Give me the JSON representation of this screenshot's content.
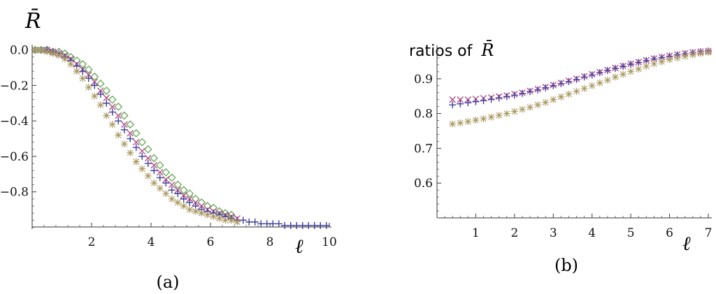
{
  "chart_data": [
    {
      "type": "scatter",
      "title": "",
      "ylabel": "R̄",
      "xlabel": "ℓ",
      "caption": "(a)",
      "xlim": [
        0,
        10
      ],
      "ylim": [
        -1,
        0.02
      ],
      "x_ticks": [
        2,
        4,
        6,
        8,
        10
      ],
      "x_tick_labels": [
        "2",
        "4",
        "6",
        "8",
        "10"
      ],
      "y_ticks": [
        0,
        -0.2,
        -0.4,
        -0.6,
        -0.8
      ],
      "y_tick_labels": [
        "0.0",
        "−0.2",
        "−0.4",
        "−0.6",
        "−0.8"
      ],
      "grid": false,
      "series": [
        {
          "marker": "diamond",
          "color": "#5aa046",
          "points": [
            [
              0.1,
              0
            ],
            [
              0.3,
              0
            ],
            [
              0.5,
              0
            ],
            [
              0.7,
              -0.01
            ],
            [
              0.9,
              -0.01
            ],
            [
              1.1,
              -0.02
            ],
            [
              1.3,
              -0.04
            ],
            [
              1.5,
              -0.06
            ],
            [
              1.7,
              -0.08
            ],
            [
              1.9,
              -0.11
            ],
            [
              2.1,
              -0.15
            ],
            [
              2.3,
              -0.19
            ],
            [
              2.5,
              -0.23
            ],
            [
              2.7,
              -0.28
            ],
            [
              2.9,
              -0.32
            ],
            [
              3.1,
              -0.37
            ],
            [
              3.3,
              -0.42
            ],
            [
              3.5,
              -0.47
            ],
            [
              3.7,
              -0.52
            ],
            [
              3.9,
              -0.56
            ],
            [
              4.1,
              -0.61
            ],
            [
              4.3,
              -0.65
            ],
            [
              4.5,
              -0.69
            ],
            [
              4.7,
              -0.72
            ],
            [
              4.9,
              -0.76
            ],
            [
              5.1,
              -0.79
            ],
            [
              5.3,
              -0.81
            ],
            [
              5.5,
              -0.84
            ],
            [
              5.7,
              -0.86
            ],
            [
              5.9,
              -0.88
            ],
            [
              6.1,
              -0.89
            ],
            [
              6.3,
              -0.91
            ],
            [
              6.5,
              -0.92
            ],
            [
              6.7,
              -0.93
            ]
          ]
        },
        {
          "marker": "x",
          "color": "#b24a86",
          "points": [
            [
              0.1,
              0
            ],
            [
              0.3,
              0
            ],
            [
              0.5,
              0
            ],
            [
              0.7,
              -0.01
            ],
            [
              0.9,
              -0.02
            ],
            [
              1.1,
              -0.03
            ],
            [
              1.3,
              -0.05
            ],
            [
              1.5,
              -0.08
            ],
            [
              1.7,
              -0.11
            ],
            [
              1.9,
              -0.14
            ],
            [
              2.1,
              -0.18
            ],
            [
              2.3,
              -0.23
            ],
            [
              2.5,
              -0.27
            ],
            [
              2.7,
              -0.32
            ],
            [
              2.9,
              -0.37
            ],
            [
              3.1,
              -0.42
            ],
            [
              3.3,
              -0.47
            ],
            [
              3.5,
              -0.52
            ],
            [
              3.7,
              -0.57
            ],
            [
              3.9,
              -0.61
            ],
            [
              4.1,
              -0.65
            ],
            [
              4.3,
              -0.69
            ],
            [
              4.5,
              -0.73
            ],
            [
              4.7,
              -0.76
            ],
            [
              4.9,
              -0.79
            ],
            [
              5.1,
              -0.82
            ],
            [
              5.3,
              -0.84
            ],
            [
              5.5,
              -0.86
            ],
            [
              5.7,
              -0.88
            ],
            [
              5.9,
              -0.9
            ],
            [
              6.1,
              -0.91
            ],
            [
              6.3,
              -0.92
            ],
            [
              6.5,
              -0.93
            ],
            [
              6.7,
              -0.94
            ],
            [
              6.9,
              -0.95
            ]
          ]
        },
        {
          "marker": "plus",
          "color": "#3d3d9c",
          "points": [
            [
              0.1,
              0
            ],
            [
              0.3,
              0
            ],
            [
              0.5,
              0
            ],
            [
              0.7,
              -0.01
            ],
            [
              0.9,
              -0.02
            ],
            [
              1.1,
              -0.04
            ],
            [
              1.3,
              -0.06
            ],
            [
              1.5,
              -0.09
            ],
            [
              1.7,
              -0.12
            ],
            [
              1.9,
              -0.16
            ],
            [
              2.1,
              -0.2
            ],
            [
              2.3,
              -0.25
            ],
            [
              2.5,
              -0.3
            ],
            [
              2.7,
              -0.35
            ],
            [
              2.9,
              -0.4
            ],
            [
              3.1,
              -0.45
            ],
            [
              3.3,
              -0.5
            ],
            [
              3.5,
              -0.55
            ],
            [
              3.7,
              -0.6
            ],
            [
              3.9,
              -0.64
            ],
            [
              4.1,
              -0.68
            ],
            [
              4.3,
              -0.72
            ],
            [
              4.5,
              -0.75
            ],
            [
              4.7,
              -0.79
            ],
            [
              4.9,
              -0.81
            ],
            [
              5.1,
              -0.84
            ],
            [
              5.3,
              -0.86
            ],
            [
              5.5,
              -0.88
            ],
            [
              5.7,
              -0.9
            ],
            [
              5.9,
              -0.91
            ],
            [
              6.1,
              -0.92
            ],
            [
              6.3,
              -0.93
            ],
            [
              6.5,
              -0.94
            ],
            [
              6.7,
              -0.95
            ],
            [
              6.9,
              -0.96
            ],
            [
              7.1,
              -0.96
            ],
            [
              7.3,
              -0.97
            ],
            [
              7.5,
              -0.97
            ],
            [
              7.7,
              -0.98
            ],
            [
              7.9,
              -0.98
            ],
            [
              8.1,
              -0.98
            ],
            [
              8.3,
              -0.98
            ],
            [
              8.5,
              -0.99
            ],
            [
              8.7,
              -0.99
            ],
            [
              8.9,
              -0.99
            ],
            [
              9.1,
              -0.99
            ],
            [
              9.3,
              -0.99
            ],
            [
              9.5,
              -0.99
            ],
            [
              9.7,
              -0.99
            ],
            [
              9.9,
              -0.99
            ]
          ]
        },
        {
          "marker": "asterisk",
          "color": "#a8975c",
          "points": [
            [
              0.1,
              0
            ],
            [
              0.3,
              0
            ],
            [
              0.5,
              -0.01
            ],
            [
              0.7,
              -0.02
            ],
            [
              0.9,
              -0.03
            ],
            [
              1.1,
              -0.05
            ],
            [
              1.3,
              -0.08
            ],
            [
              1.5,
              -0.12
            ],
            [
              1.7,
              -0.16
            ],
            [
              1.9,
              -0.21
            ],
            [
              2.1,
              -0.26
            ],
            [
              2.3,
              -0.31
            ],
            [
              2.5,
              -0.37
            ],
            [
              2.7,
              -0.42
            ],
            [
              2.9,
              -0.48
            ],
            [
              3.1,
              -0.53
            ],
            [
              3.3,
              -0.58
            ],
            [
              3.5,
              -0.63
            ],
            [
              3.7,
              -0.67
            ],
            [
              3.9,
              -0.71
            ],
            [
              4.1,
              -0.75
            ],
            [
              4.3,
              -0.78
            ],
            [
              4.5,
              -0.81
            ],
            [
              4.7,
              -0.84
            ],
            [
              4.9,
              -0.86
            ],
            [
              5.1,
              -0.88
            ],
            [
              5.3,
              -0.9
            ],
            [
              5.5,
              -0.91
            ],
            [
              5.7,
              -0.92
            ],
            [
              5.9,
              -0.93
            ],
            [
              6.1,
              -0.94
            ],
            [
              6.3,
              -0.95
            ],
            [
              6.5,
              -0.96
            ],
            [
              6.7,
              -0.96
            ],
            [
              6.9,
              -0.97
            ]
          ]
        }
      ]
    },
    {
      "type": "scatter",
      "title": "ratios of R̄",
      "title_text": "ratios of",
      "title_symbol": "R̄",
      "xlabel": "ℓ",
      "ylabel": "",
      "caption": "(b)",
      "xlim": [
        0,
        7
      ],
      "ylim": [
        0.5,
        1.0
      ],
      "x_ticks": [
        1,
        2,
        3,
        4,
        5,
        6,
        7
      ],
      "x_tick_labels": [
        "1",
        "2",
        "3",
        "4",
        "5",
        "6",
        "7"
      ],
      "y_ticks": [
        0.6,
        0.7,
        0.8,
        0.9
      ],
      "y_tick_labels": [
        "0.6",
        "0.7",
        "0.8",
        "0.9"
      ],
      "grid": false,
      "series": [
        {
          "marker": "x",
          "color": "#b24a86",
          "points": [
            [
              0.4,
              0.84
            ],
            [
              0.6,
              0.84
            ],
            [
              0.8,
              0.84
            ],
            [
              1.0,
              0.842
            ],
            [
              1.2,
              0.844
            ],
            [
              1.4,
              0.846
            ],
            [
              1.6,
              0.849
            ],
            [
              1.8,
              0.852
            ],
            [
              2.0,
              0.856
            ],
            [
              2.2,
              0.86
            ],
            [
              2.4,
              0.865
            ],
            [
              2.6,
              0.87
            ],
            [
              2.8,
              0.876
            ],
            [
              3.0,
              0.882
            ],
            [
              3.2,
              0.888
            ],
            [
              3.4,
              0.894
            ],
            [
              3.6,
              0.9
            ],
            [
              3.8,
              0.907
            ],
            [
              4.0,
              0.913
            ],
            [
              4.2,
              0.919
            ],
            [
              4.4,
              0.925
            ],
            [
              4.6,
              0.931
            ],
            [
              4.8,
              0.937
            ],
            [
              5.0,
              0.943
            ],
            [
              5.2,
              0.948
            ],
            [
              5.4,
              0.953
            ],
            [
              5.6,
              0.958
            ],
            [
              5.8,
              0.962
            ],
            [
              6.0,
              0.966
            ],
            [
              6.2,
              0.97
            ],
            [
              6.4,
              0.973
            ],
            [
              6.6,
              0.976
            ],
            [
              6.8,
              0.978
            ],
            [
              7.0,
              0.98
            ]
          ]
        },
        {
          "marker": "plus",
          "color": "#3d3d9c",
          "points": [
            [
              0.4,
              0.825
            ],
            [
              0.6,
              0.828
            ],
            [
              0.8,
              0.831
            ],
            [
              1.0,
              0.834
            ],
            [
              1.2,
              0.837
            ],
            [
              1.4,
              0.841
            ],
            [
              1.6,
              0.845
            ],
            [
              1.8,
              0.849
            ],
            [
              2.0,
              0.853
            ],
            [
              2.2,
              0.858
            ],
            [
              2.4,
              0.863
            ],
            [
              2.6,
              0.868
            ],
            [
              2.8,
              0.874
            ],
            [
              3.0,
              0.88
            ],
            [
              3.2,
              0.886
            ],
            [
              3.4,
              0.892
            ],
            [
              3.6,
              0.898
            ],
            [
              3.8,
              0.905
            ],
            [
              4.0,
              0.911
            ],
            [
              4.2,
              0.918
            ],
            [
              4.4,
              0.924
            ],
            [
              4.6,
              0.93
            ],
            [
              4.8,
              0.936
            ],
            [
              5.0,
              0.942
            ],
            [
              5.2,
              0.947
            ],
            [
              5.4,
              0.952
            ],
            [
              5.6,
              0.957
            ],
            [
              5.8,
              0.961
            ],
            [
              6.0,
              0.965
            ],
            [
              6.2,
              0.969
            ],
            [
              6.4,
              0.972
            ],
            [
              6.6,
              0.975
            ],
            [
              6.8,
              0.978
            ],
            [
              7.0,
              0.98
            ]
          ]
        },
        {
          "marker": "asterisk",
          "color": "#a8975c",
          "points": [
            [
              0.4,
              0.77
            ],
            [
              0.6,
              0.773
            ],
            [
              0.8,
              0.777
            ],
            [
              1.0,
              0.781
            ],
            [
              1.2,
              0.785
            ],
            [
              1.4,
              0.79
            ],
            [
              1.6,
              0.795
            ],
            [
              1.8,
              0.8
            ],
            [
              2.0,
              0.806
            ],
            [
              2.2,
              0.812
            ],
            [
              2.4,
              0.818
            ],
            [
              2.6,
              0.825
            ],
            [
              2.8,
              0.832
            ],
            [
              3.0,
              0.84
            ],
            [
              3.2,
              0.848
            ],
            [
              3.4,
              0.856
            ],
            [
              3.6,
              0.864
            ],
            [
              3.8,
              0.872
            ],
            [
              4.0,
              0.88
            ],
            [
              4.2,
              0.888
            ],
            [
              4.4,
              0.896
            ],
            [
              4.6,
              0.905
            ],
            [
              4.8,
              0.913
            ],
            [
              5.0,
              0.921
            ],
            [
              5.2,
              0.928
            ],
            [
              5.4,
              0.936
            ],
            [
              5.6,
              0.943
            ],
            [
              5.8,
              0.949
            ],
            [
              6.0,
              0.955
            ],
            [
              6.2,
              0.96
            ],
            [
              6.4,
              0.965
            ],
            [
              6.6,
              0.969
            ],
            [
              6.8,
              0.973
            ],
            [
              7.0,
              0.976
            ]
          ]
        }
      ]
    }
  ]
}
